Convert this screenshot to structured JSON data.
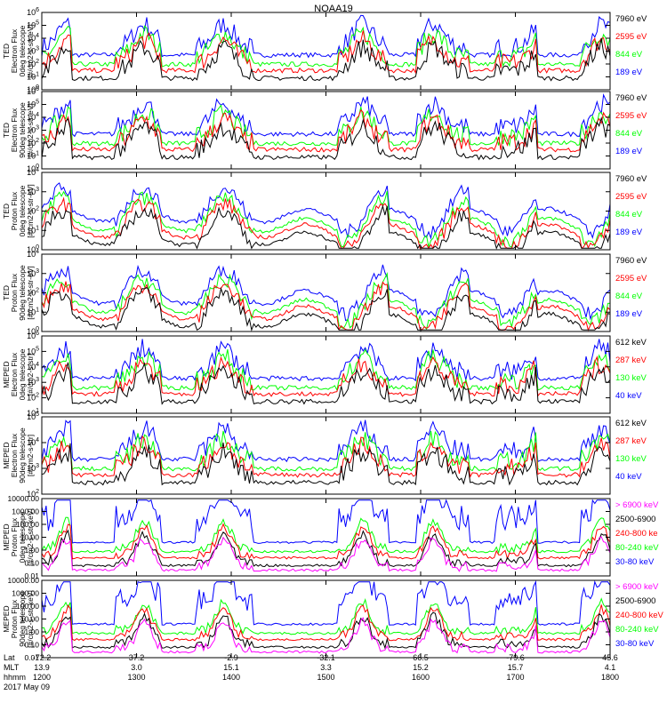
{
  "title": "NOAA19",
  "colors": {
    "blue": "#0000ff",
    "red": "#ff0000",
    "green": "#00ff00",
    "black": "#000000",
    "magenta": "#ff00ff",
    "axis": "#000000"
  },
  "chart_data": {
    "type": "line",
    "title": "NOAA19",
    "xlabel": "hhmm",
    "x_ticks": [
      "1200",
      "1300",
      "1400",
      "1500",
      "1600",
      "1700",
      "1800"
    ],
    "orbit_rows": [
      {
        "label": "Lat",
        "values": [
          "-72.2",
          "37.2",
          "-2.9",
          "-32.1",
          "66.5",
          "-79.6",
          "45.6"
        ]
      },
      {
        "label": "MLT",
        "values": [
          "13.9",
          "3.0",
          "15.1",
          "3.3",
          "15.2",
          "15.7",
          "4.1"
        ]
      },
      {
        "label": "hhmm",
        "values": [
          "1200",
          "1300",
          "1400",
          "1500",
          "1600",
          "1700",
          "1800"
        ]
      }
    ],
    "date": "2017 May 09",
    "panels": [
      {
        "ylabel": [
          "TED",
          "Electron Flux",
          "0deg telescope",
          "[#/cm2-s-str-eV]"
        ],
        "yticks": [
          "10^6",
          "10^5",
          "10^4",
          "10^3",
          "10^2",
          "10^1",
          "10^0"
        ],
        "legend": [
          {
            "text": "7960 eV",
            "color": "black"
          },
          {
            "text": "2595 eV",
            "color": "red"
          },
          {
            "text": "844 eV",
            "color": "green"
          },
          {
            "text": "189 eV",
            "color": "blue"
          }
        ]
      },
      {
        "ylabel": [
          "TED",
          "Electron Flux",
          "90deg telescope",
          "[#/cm2-s-str-eV]"
        ],
        "yticks": [
          "10^6",
          "10^5",
          "10^4",
          "10^3",
          "10^2",
          "10^1",
          "10^0"
        ],
        "legend": [
          {
            "text": "7960 eV",
            "color": "black"
          },
          {
            "text": "2595 eV",
            "color": "red"
          },
          {
            "text": "844 eV",
            "color": "green"
          },
          {
            "text": "189 eV",
            "color": "blue"
          }
        ]
      },
      {
        "ylabel": [
          "TED",
          "Proton Flux",
          "0deg telescope",
          "[#/cm2-s-str-eV]"
        ],
        "yticks": [
          "10^4",
          "10^3",
          "10^2",
          "10^1",
          "10^0"
        ],
        "legend": [
          {
            "text": "7960 eV",
            "color": "black"
          },
          {
            "text": "2595 eV",
            "color": "red"
          },
          {
            "text": "844 eV",
            "color": "green"
          },
          {
            "text": "189 eV",
            "color": "blue"
          }
        ]
      },
      {
        "ylabel": [
          "TED",
          "Proton Flux",
          "90deg telescope",
          "[#/cm2-s-str-eV]"
        ],
        "yticks": [
          "10^4",
          "10^3",
          "10^2",
          "10^1",
          "10^0"
        ],
        "legend": [
          {
            "text": "7960 eV",
            "color": "black"
          },
          {
            "text": "2595 eV",
            "color": "red"
          },
          {
            "text": "844 eV",
            "color": "green"
          },
          {
            "text": "189 eV",
            "color": "blue"
          }
        ]
      },
      {
        "ylabel": [
          "MEPED",
          "Electron Flux",
          "0deg telescope",
          "[#/cm2-s-str]"
        ],
        "yticks": [
          "10^6",
          "10^5",
          "10^4",
          "10^3",
          "10^2",
          "10^1"
        ],
        "legend": [
          {
            "text": "612 keV",
            "color": "black"
          },
          {
            "text": "287 keV",
            "color": "red"
          },
          {
            "text": "130 keV",
            "color": "green"
          },
          {
            "text": "40 keV",
            "color": "blue"
          }
        ]
      },
      {
        "ylabel": [
          "MEPED",
          "Electron Flux",
          "90deg telescope",
          "[#/cm2-s-str]"
        ],
        "yticks": [
          "10^5",
          "10^4",
          "10^3",
          "10^2"
        ],
        "legend": [
          {
            "text": "612 keV",
            "color": "black"
          },
          {
            "text": "287 keV",
            "color": "red"
          },
          {
            "text": "130 keV",
            "color": "green"
          },
          {
            "text": "40 keV",
            "color": "blue"
          }
        ]
      },
      {
        "ylabel": [
          "MEPED",
          "Proton Flux",
          "0deg telescope",
          "[#/cm2-s-str-keV]"
        ],
        "yticks": [
          "10000.00",
          "1000.00",
          "100.00",
          "10.00",
          "1.00",
          "0.10",
          "0.01"
        ],
        "legend": [
          {
            "text": "> 6900 keV",
            "color": "magenta"
          },
          {
            "text": "2500-6900",
            "color": "black"
          },
          {
            "text": "240-800 ke",
            "color": "red"
          },
          {
            "text": "80-240 keV",
            "color": "green"
          },
          {
            "text": "30-80 keV",
            "color": "blue"
          }
        ]
      },
      {
        "ylabel": [
          "MEPED",
          "Proton Flux",
          "90deg telescope",
          "[#/cm2-s-str-keV]"
        ],
        "yticks": [
          "10000.00",
          "1000.00",
          "100.00",
          "10.00",
          "1.00",
          "0.10",
          "0.01"
        ],
        "legend": [
          {
            "text": "> 6900 keV",
            "color": "magenta"
          },
          {
            "text": "2500-6900",
            "color": "black"
          },
          {
            "text": "240-800 keV",
            "color": "red"
          },
          {
            "text": "80-240 keV",
            "color": "green"
          },
          {
            "text": "30-80 keV",
            "color": "blue"
          }
        ]
      }
    ]
  }
}
